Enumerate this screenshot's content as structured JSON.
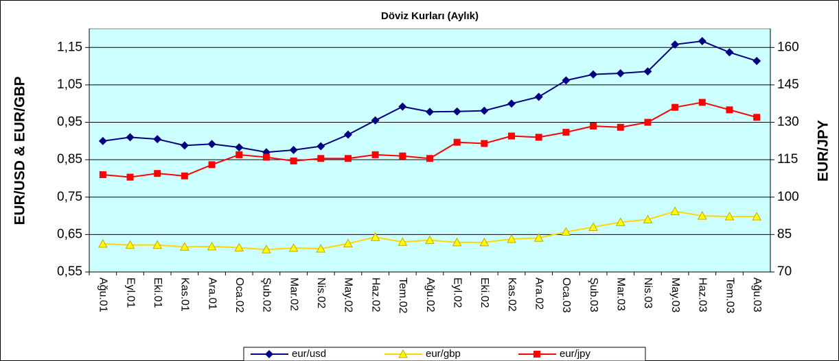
{
  "chart_data": {
    "type": "line",
    "title": "Döviz Kurları (Aylık)",
    "y_label": "EUR/USD & EUR/GBP",
    "y2_label": "EUR/JPY",
    "categories": [
      "Ağu.01",
      "Eyl.01",
      "Eki.01",
      "Kas.01",
      "Ara.01",
      "Oca.02",
      "Şub.02",
      "Mar.02",
      "Nis.02",
      "May.02",
      "Haz.02",
      "Tem.02",
      "Ağu.02",
      "Eyl.02",
      "Eki.02",
      "Kas.02",
      "Ara.02",
      "Oca.03",
      "Şub.03",
      "Mar.03",
      "Nis.03",
      "May.03",
      "Haz.03",
      "Tem.03",
      "Ağu.03"
    ],
    "series": [
      {
        "name": "eur/usd",
        "color": "#000080",
        "marker": "diamond",
        "values": [
          0.9,
          0.91,
          0.905,
          0.888,
          0.892,
          0.883,
          0.87,
          0.876,
          0.886,
          0.917,
          0.955,
          0.992,
          0.978,
          0.979,
          0.981,
          1.0,
          1.018,
          1.062,
          1.078,
          1.081,
          1.086,
          1.158,
          1.167,
          1.137,
          1.114
        ]
      },
      {
        "name": "eur/gbp",
        "color": "#FFFF00",
        "marker": "triangle",
        "values": [
          0.625,
          0.622,
          0.622,
          0.617,
          0.618,
          0.615,
          0.61,
          0.614,
          0.612,
          0.626,
          0.643,
          0.63,
          0.635,
          0.629,
          0.629,
          0.638,
          0.641,
          0.657,
          0.67,
          0.683,
          0.69,
          0.712,
          0.7,
          0.698,
          0.698
        ]
      },
      {
        "name": "eur/jpy",
        "color": "#FF0000",
        "marker": "square",
        "axis": "y2",
        "values": [
          109,
          108,
          109.5,
          108.5,
          113,
          117,
          116,
          114.5,
          115.5,
          115.5,
          117,
          116.5,
          115.5,
          122,
          121.5,
          124.5,
          124,
          126,
          128.5,
          128,
          130,
          136,
          138,
          135,
          132
        ]
      }
    ],
    "ylim": [
      0.55,
      1.2
    ],
    "yticks": [
      {
        "value": 0.55,
        "label": "0,55"
      },
      {
        "value": 0.65,
        "label": "0,65"
      },
      {
        "value": 0.75,
        "label": "0,75"
      },
      {
        "value": 0.85,
        "label": "0,85"
      },
      {
        "value": 0.95,
        "label": "0,95"
      },
      {
        "value": 1.05,
        "label": "1,05"
      },
      {
        "value": 1.15,
        "label": "1,15"
      }
    ],
    "y2lim": [
      70,
      167.5
    ],
    "y2ticks": [
      70,
      85,
      100,
      115,
      130,
      145,
      160
    ],
    "grid": true,
    "legend": "bottom"
  }
}
